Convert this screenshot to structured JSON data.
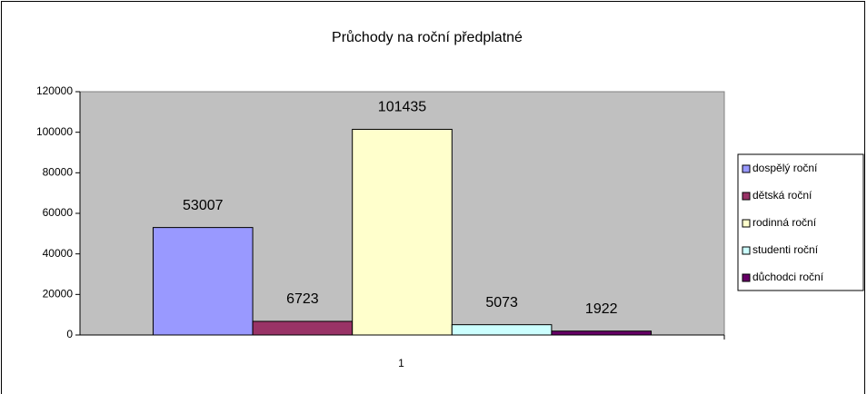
{
  "chart_data": {
    "type": "bar",
    "title": "Průchody na roční předplatné",
    "categories": [
      "1"
    ],
    "series": [
      {
        "name": "dospělý roční",
        "color": "#9999ff",
        "values": [
          53007
        ]
      },
      {
        "name": "dětská roční",
        "color": "#993366",
        "values": [
          6723
        ]
      },
      {
        "name": "rodinná roční",
        "color": "#ffffcc",
        "values": [
          101435
        ]
      },
      {
        "name": "studenti roční",
        "color": "#ccffff",
        "values": [
          5073
        ]
      },
      {
        "name": "důchodci roční",
        "color": "#660066",
        "values": [
          1922
        ]
      }
    ],
    "ylim": [
      0,
      120000
    ],
    "yticks": [
      0,
      20000,
      40000,
      60000,
      80000,
      100000,
      120000
    ],
    "plot_background": "#c0c0c0",
    "legend": "right",
    "data_labels": true
  }
}
